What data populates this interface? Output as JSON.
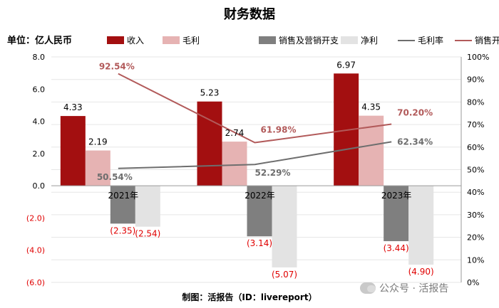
{
  "chart_data": {
    "type": "bar",
    "title": "财务数据",
    "unit_label": "单位：亿人民币",
    "footer": "制图：活报告（ID：livereport）",
    "categories": [
      "2021年",
      "2022年",
      "2023年"
    ],
    "series": [
      {
        "name": "收入",
        "kind": "bar",
        "color": "#a30f10",
        "values": [
          4.33,
          5.23,
          6.97
        ],
        "labels": [
          "4.33",
          "5.23",
          "6.97"
        ]
      },
      {
        "name": "毛利",
        "kind": "bar",
        "color": "#e6b3b3",
        "values": [
          2.19,
          2.74,
          4.35
        ],
        "labels": [
          "2.19",
          "2.74",
          "4.35"
        ]
      },
      {
        "name": "销售及营销开支",
        "kind": "bar",
        "color": "#7f7f7f",
        "values": [
          -2.35,
          -3.14,
          -3.44
        ],
        "labels": [
          "(2.35)",
          "(3.14)",
          "(3.44)"
        ]
      },
      {
        "name": "净利",
        "kind": "bar",
        "color": "#e3e3e3",
        "values": [
          -2.54,
          -5.07,
          -4.9
        ],
        "labels": [
          "(2.54)",
          "(5.07)",
          "(4.90)"
        ]
      },
      {
        "name": "毛利率",
        "kind": "line",
        "axis": "right",
        "color": "#6e6e6e",
        "values": [
          50.54,
          52.29,
          62.34
        ],
        "labels": [
          "50.54%",
          "52.29%",
          "62.34%"
        ]
      },
      {
        "name": "销售开支占亏损比",
        "kind": "line",
        "axis": "right",
        "color": "#b25a5a",
        "values": [
          92.54,
          61.98,
          70.2
        ],
        "labels": [
          "92.54%",
          "61.98%",
          "70.20%"
        ]
      }
    ],
    "y_left": {
      "min": -6,
      "max": 8,
      "ticks": [
        8,
        6,
        4,
        2,
        0,
        -2,
        -4,
        -6
      ],
      "tick_labels": [
        "8.0",
        "6.0",
        "4.0",
        "2.0",
        "0.0",
        "(2.0)",
        "(4.0)",
        "(6.0)"
      ]
    },
    "y_right": {
      "min": 0,
      "max": 100,
      "ticks": [
        100,
        90,
        80,
        70,
        60,
        50,
        40,
        30,
        20,
        10,
        0
      ],
      "tick_labels": [
        "100%",
        "90%",
        "80%",
        "70%",
        "60%",
        "50%",
        "40%",
        "30%",
        "20%",
        "10%",
        "0%"
      ]
    },
    "grid": true,
    "legend_position": "top",
    "negative_label_color": "#e00000"
  },
  "watermark": {
    "text": "公众号 · 活报告"
  }
}
